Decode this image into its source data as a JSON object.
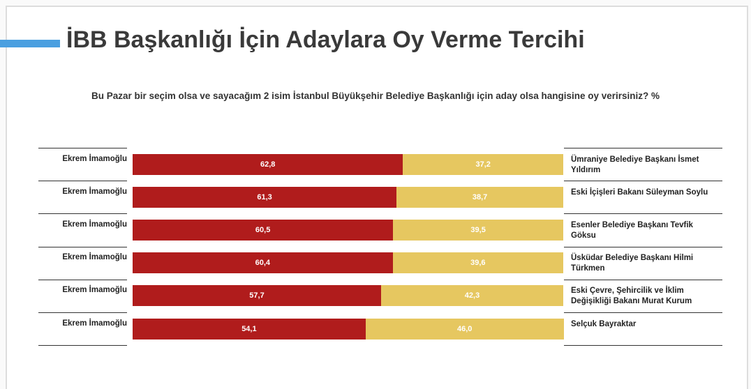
{
  "chart_data": {
    "type": "stacked-bar",
    "title": "İBB Başkanlığı İçin Adaylara Oy Verme Tercihi",
    "subtitle": "Bu Pazar bir seçim olsa ve sayacağım 2 isim İstanbul Büyükşehir Belediye Başkanlığı için aday olsa hangisine oy verirsiniz? %",
    "categories": [
      "Ekrem İmamoğlu",
      "Ekrem İmamoğlu",
      "Ekrem İmamoğlu",
      "Ekrem İmamoğlu",
      "Ekrem İmamoğlu",
      "Ekrem İmamoğlu"
    ],
    "right_labels": [
      "Ümraniye Belediye Başkanı İsmet Yıldırım",
      "Eski İçişleri Bakanı  Süleyman Soylu",
      "Esenler Belediye Başkanı  Tevfik Göksu",
      "Üsküdar Belediye Başkanı Hilmi Türkmen",
      "Eski Çevre, Şehircilik ve İklim Değişikliği Bakanı Murat Kurum",
      "Selçuk Bayraktar"
    ],
    "xlim": [
      0,
      100
    ],
    "series": [
      {
        "color": "#b01c1c",
        "values": [
          62.8,
          61.3,
          60.5,
          60.4,
          57.7,
          54.1
        ],
        "value_labels": [
          "62,8",
          "61,3",
          "60,5",
          "60,4",
          "57,7",
          "54,1"
        ]
      },
      {
        "color": "#e6c760",
        "values": [
          37.2,
          38.7,
          39.5,
          39.6,
          42.3,
          46.0
        ],
        "value_labels": [
          "37,2",
          "38,7",
          "39,5",
          "39,6",
          "42,3",
          "46,0"
        ]
      }
    ]
  }
}
